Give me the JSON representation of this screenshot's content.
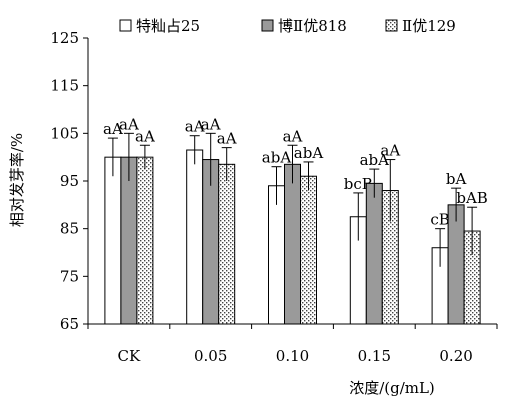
{
  "chart_data": {
    "type": "bar",
    "xlabel": "浓度/(g/mL)",
    "ylabel": "相对发芽率/%",
    "ylim": [
      65,
      125
    ],
    "yticks": [
      65,
      75,
      85,
      95,
      105,
      115,
      125
    ],
    "categories": [
      "CK",
      "0.05",
      "0.10",
      "0.15",
      "0.20"
    ],
    "legend_position": "top",
    "series": [
      {
        "name": "特籼占25",
        "pattern": "white",
        "values": [
          100,
          101.5,
          94,
          87.5,
          81
        ],
        "errors": [
          4,
          3,
          4,
          5,
          4
        ],
        "labels": [
          "aA",
          "aA",
          "abA",
          "bcB",
          "cB"
        ]
      },
      {
        "name": "博Ⅱ优818",
        "pattern": "gray",
        "values": [
          100,
          99.5,
          98.5,
          94.5,
          90
        ],
        "errors": [
          5,
          5.5,
          4,
          3,
          3.5
        ],
        "labels": [
          "aA",
          "aA",
          "aA",
          "abA",
          "bA"
        ]
      },
      {
        "name": "Ⅱ优129",
        "pattern": "dots",
        "values": [
          100,
          98.5,
          96,
          93,
          84.5
        ],
        "errors": [
          2.5,
          3.5,
          3,
          6.5,
          5
        ],
        "labels": [
          "aA",
          "aA",
          "abA",
          "aA",
          "bAB"
        ]
      }
    ],
    "colors": {
      "gray": "#9a9a9a",
      "white": "#ffffff",
      "axis": "#000000"
    }
  }
}
